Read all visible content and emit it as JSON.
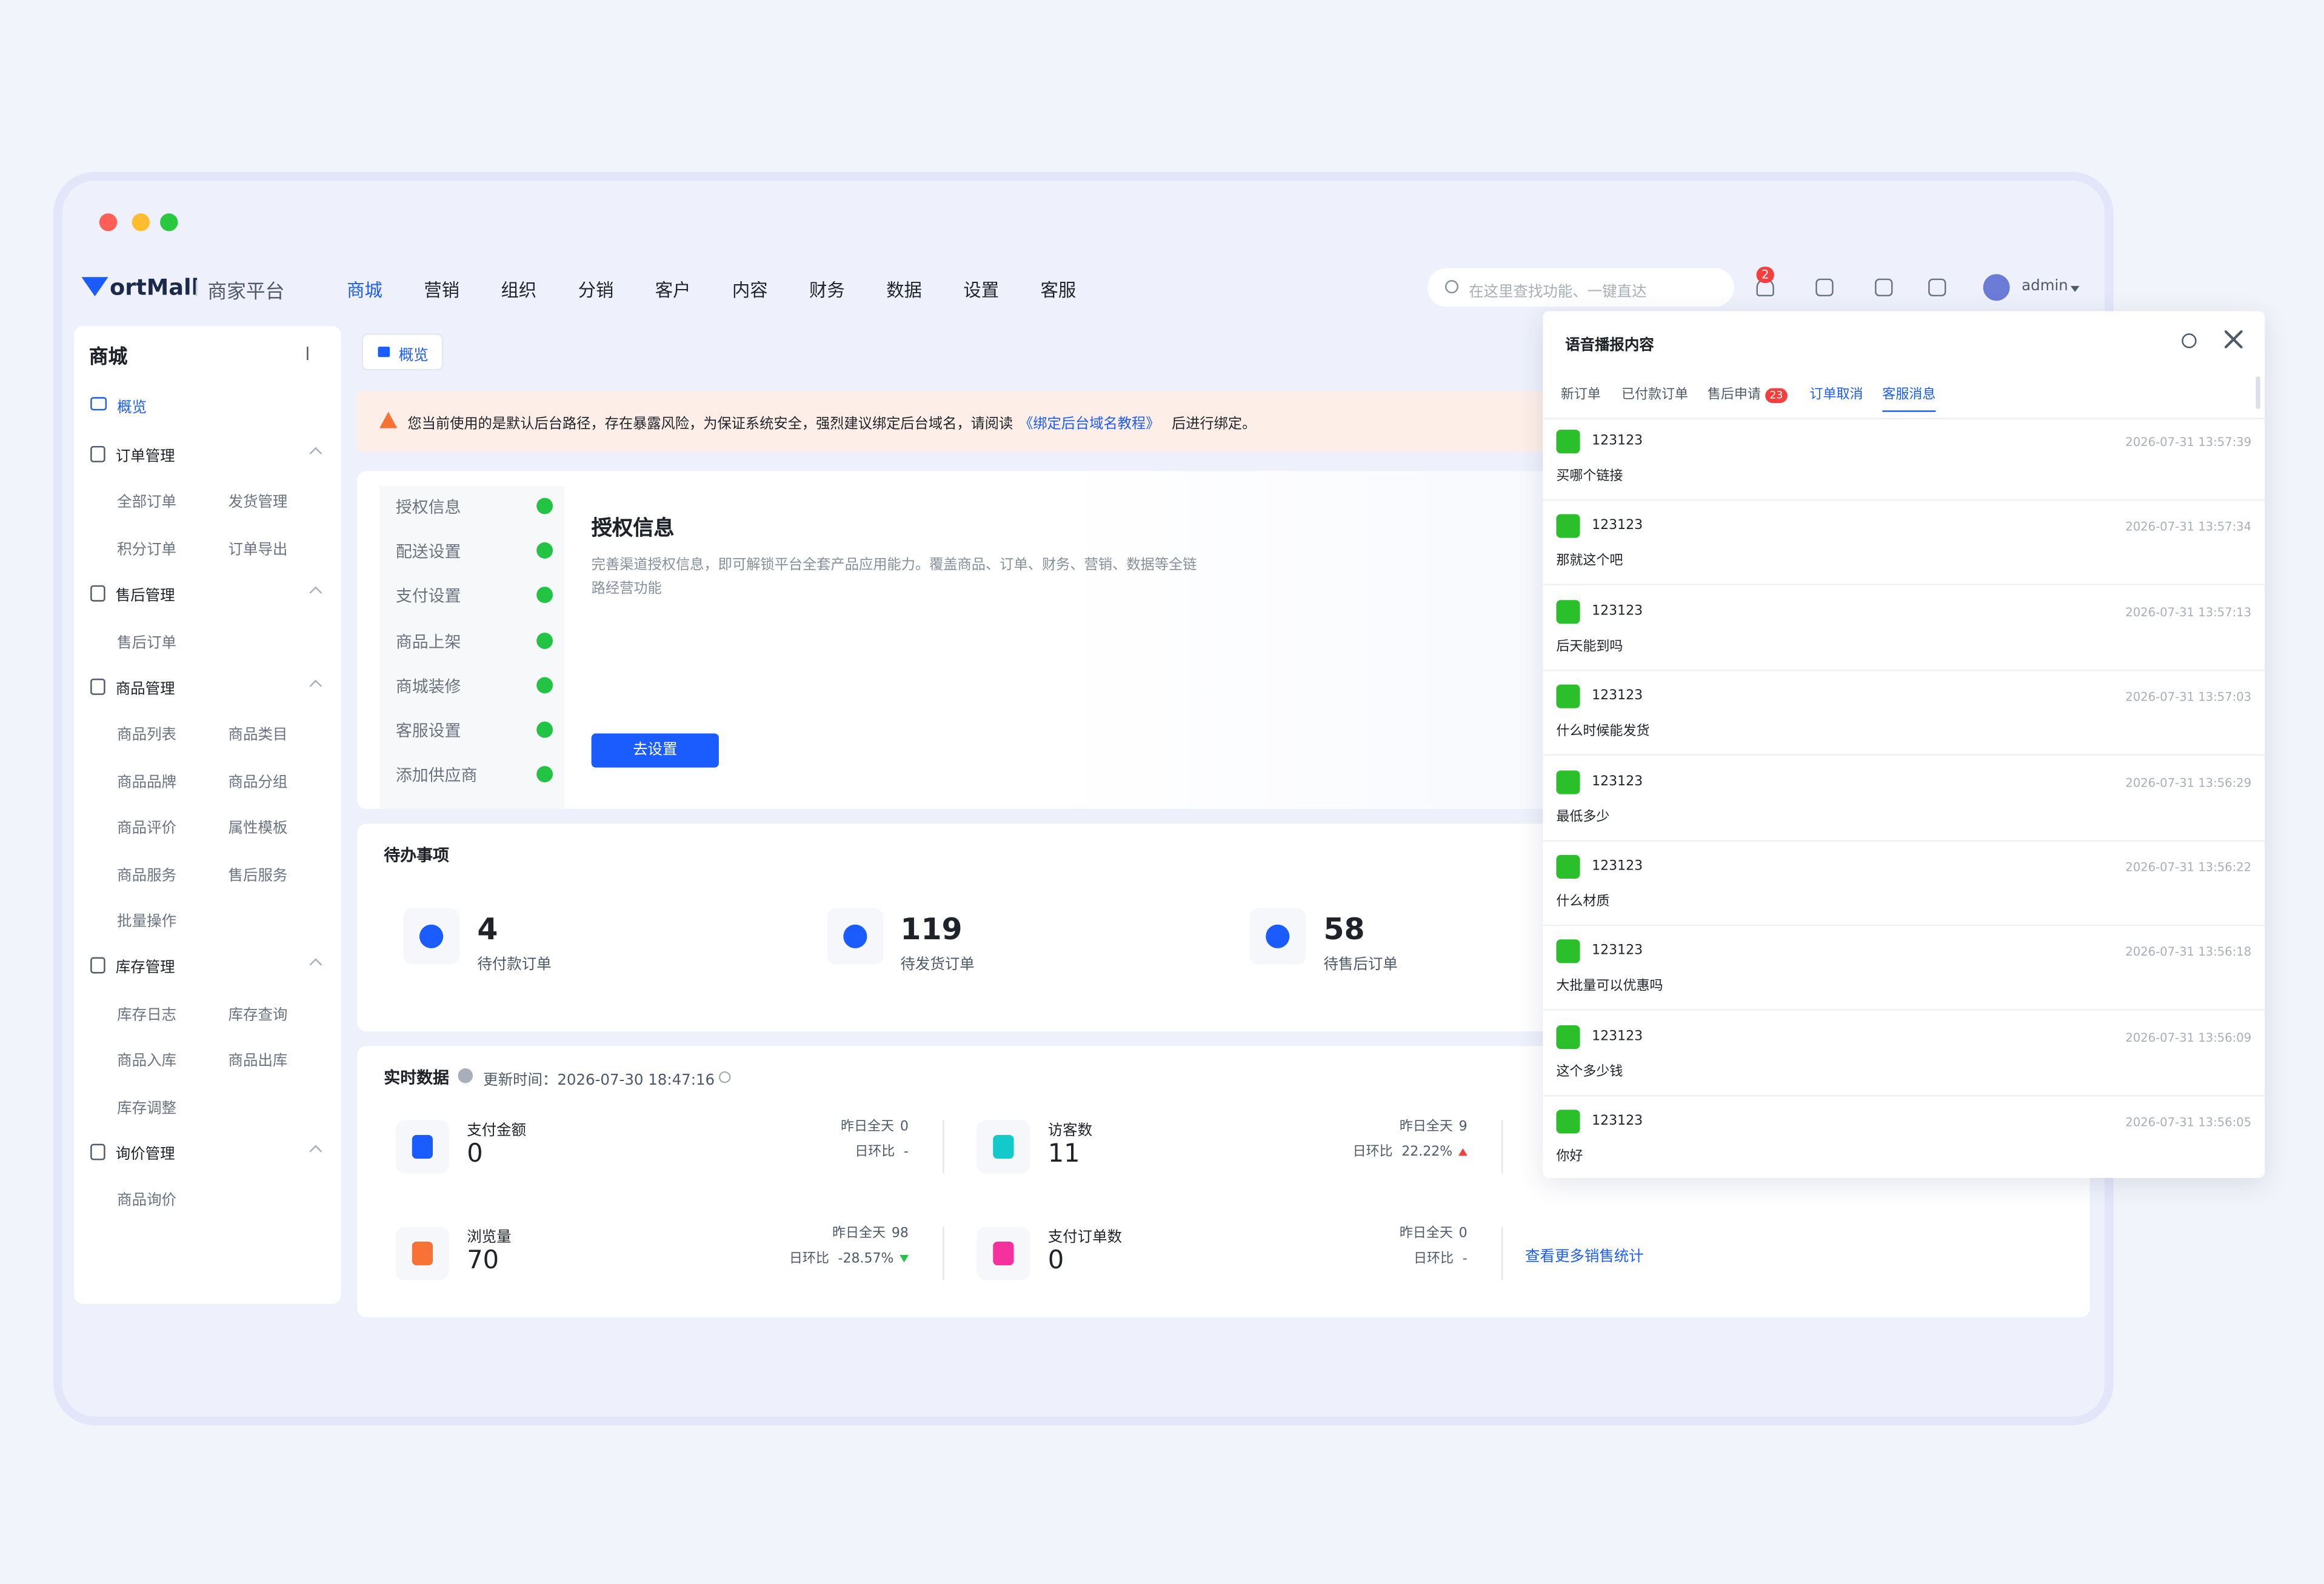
{
  "brand": {
    "logo": "ortMall",
    "platform": "商家平台"
  },
  "nav": {
    "items": [
      "商城",
      "营销",
      "组织",
      "分销",
      "客户",
      "内容",
      "财务",
      "数据",
      "设置",
      "客服"
    ],
    "active": 0
  },
  "search_placeholder": "在这里查找功能、一键直达",
  "notification_badge": "2",
  "user": "admin",
  "sidebar": {
    "title": "商城",
    "overview": "概览",
    "groups": [
      {
        "title": "订单管理",
        "items": [
          "全部订单",
          "发货管理",
          "积分订单",
          "订单导出"
        ]
      },
      {
        "title": "售后管理",
        "items": [
          "售后订单"
        ]
      },
      {
        "title": "商品管理",
        "items": [
          "商品列表",
          "商品类目",
          "商品品牌",
          "商品分组",
          "商品评价",
          "属性模板",
          "商品服务",
          "售后服务",
          "批量操作"
        ]
      },
      {
        "title": "库存管理",
        "items": [
          "库存日志",
          "库存查询",
          "商品入库",
          "商品出库",
          "库存调整"
        ]
      },
      {
        "title": "询价管理",
        "items": [
          "商品询价"
        ]
      }
    ]
  },
  "tab": "概览",
  "alert": {
    "text": "您当前使用的是默认后台路径，存在暴露风险，为保证系统安全，强烈建议绑定后台域名，请阅读",
    "link": "《绑定后台域名教程》",
    "suffix": "后进行绑定。"
  },
  "setup": {
    "steps": [
      "授权信息",
      "配送设置",
      "支付设置",
      "商品上架",
      "商城装修",
      "客服设置",
      "添加供应商"
    ],
    "title": "授权信息",
    "desc": "完善渠道授权信息，即可解锁平台全套产品应用能力。覆盖商品、订单、财务、营销、数据等全链路经营功能",
    "button": "去设置"
  },
  "todo": {
    "title": "待办事项",
    "items": [
      {
        "value": 4,
        "label": "待付款订单"
      },
      {
        "value": 119,
        "label": "待发货订单"
      },
      {
        "value": 58,
        "label": "待售后订单"
      }
    ]
  },
  "realtime": {
    "title": "实时数据",
    "updated_label": "更新时间：",
    "updated": "2026-07-30 18:47:16",
    "yesterday_label": "昨日全天",
    "ratio_label": "日环比",
    "metrics": [
      {
        "name": "支付金额",
        "value": 0,
        "yesterday": 0,
        "ratio": "-"
      },
      {
        "name": "访客数",
        "value": 11,
        "yesterday": 9,
        "ratio": "22.22%",
        "trend": "up"
      },
      {
        "name": "浏览量",
        "value": 70,
        "yesterday": 98,
        "ratio": "-28.57%",
        "trend": "down"
      },
      {
        "name": "支付订单数",
        "value": 0,
        "yesterday": 0,
        "ratio": "-"
      }
    ],
    "more": "查看更多销售统计"
  },
  "panel": {
    "title": "语音播报内容",
    "tabs": [
      {
        "label": "新订单"
      },
      {
        "label": "已付款订单"
      },
      {
        "label": "售后申请",
        "badge": "23"
      },
      {
        "label": "订单取消"
      },
      {
        "label": "客服消息"
      }
    ],
    "active": 4,
    "messages": [
      {
        "user": "123123",
        "time": "2026-07-31 13:57:39",
        "text": "买哪个链接"
      },
      {
        "user": "123123",
        "time": "2026-07-31 13:57:34",
        "text": "那就这个吧"
      },
      {
        "user": "123123",
        "time": "2026-07-31 13:57:13",
        "text": "后天能到吗"
      },
      {
        "user": "123123",
        "time": "2026-07-31 13:57:03",
        "text": "什么时候能发货"
      },
      {
        "user": "123123",
        "time": "2026-07-31 13:56:29",
        "text": "最低多少"
      },
      {
        "user": "123123",
        "time": "2026-07-31 13:56:22",
        "text": "什么材质"
      },
      {
        "user": "123123",
        "time": "2026-07-31 13:56:18",
        "text": "大批量可以优惠吗"
      },
      {
        "user": "123123",
        "time": "2026-07-31 13:56:09",
        "text": "这个多少钱"
      },
      {
        "user": "123123",
        "time": "2026-07-31 13:56:05",
        "text": "你好"
      }
    ]
  }
}
